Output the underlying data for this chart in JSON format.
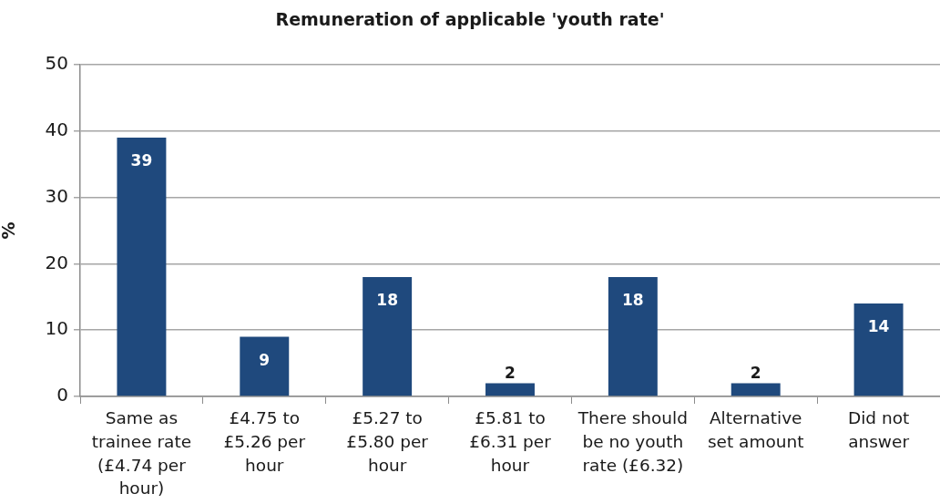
{
  "chart_data": {
    "type": "bar",
    "title": "Remuneration of applicable 'youth rate'",
    "ylabel": "%",
    "categories": [
      "Same as trainee rate (£4.74 per hour)",
      "£4.75 to £5.26 per hour",
      "£5.27 to £5.80 per hour",
      "£5.81 to £6.31 per hour",
      "There should be no youth rate (£6.32)",
      "Alternative set amount",
      "Did not answer"
    ],
    "values": [
      39,
      9,
      18,
      2,
      18,
      2,
      14
    ],
    "color": "#1f497d",
    "ylim": [
      0,
      50
    ],
    "yticks": [
      0,
      10,
      20,
      30,
      40,
      50
    ],
    "grid": "y",
    "data_labels": true
  }
}
